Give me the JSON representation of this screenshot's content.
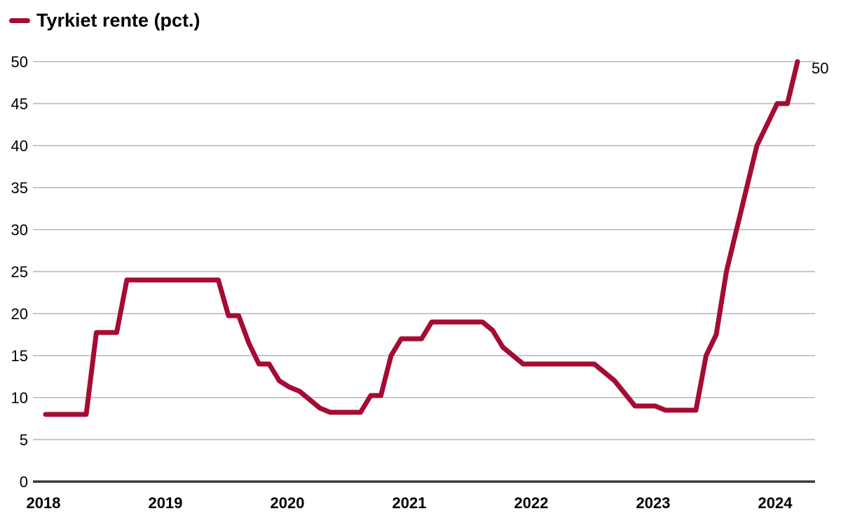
{
  "legend": {
    "label": "Tyrkiet rente (pct.)"
  },
  "colors": {
    "line": "#A50B33",
    "grid": "#C8C8C8",
    "axis": "#3A3A3A",
    "text": "#000000",
    "background": "#FFFFFF"
  },
  "chart_data": {
    "type": "line",
    "title": "Tyrkiet rente (pct.)",
    "xlabel": "",
    "ylabel": "",
    "unit": "pct.",
    "grid": "horizontal",
    "legend_position": "top-left",
    "ylim": [
      0,
      50
    ],
    "y_ticks": [
      0,
      5,
      10,
      15,
      20,
      25,
      30,
      35,
      40,
      45,
      50
    ],
    "x_tick_labels": [
      "2018",
      "2019",
      "2020",
      "2021",
      "2022",
      "2023",
      "2024"
    ],
    "end_label": "50",
    "series": [
      {
        "name": "Tyrkiet rente (pct.)",
        "frequency": "monthly",
        "start": "2018-01",
        "end": "2024-03",
        "values": [
          8,
          8,
          8,
          8,
          8,
          17.75,
          17.75,
          17.75,
          24,
          24,
          24,
          24,
          24,
          24,
          24,
          24,
          24,
          24,
          19.75,
          19.75,
          16.5,
          14,
          14,
          12,
          11.25,
          10.75,
          9.75,
          8.75,
          8.25,
          8.25,
          8.25,
          8.25,
          10.25,
          10.25,
          15,
          17,
          17,
          17,
          19,
          19,
          19,
          19,
          19,
          19,
          18,
          16,
          15,
          14,
          14,
          14,
          14,
          14,
          14,
          14,
          14,
          13,
          12,
          10.5,
          9,
          9,
          9,
          8.5,
          8.5,
          8.5,
          8.5,
          15,
          17.5,
          25,
          30,
          35,
          40,
          42.5,
          45,
          45,
          50
        ]
      }
    ]
  }
}
